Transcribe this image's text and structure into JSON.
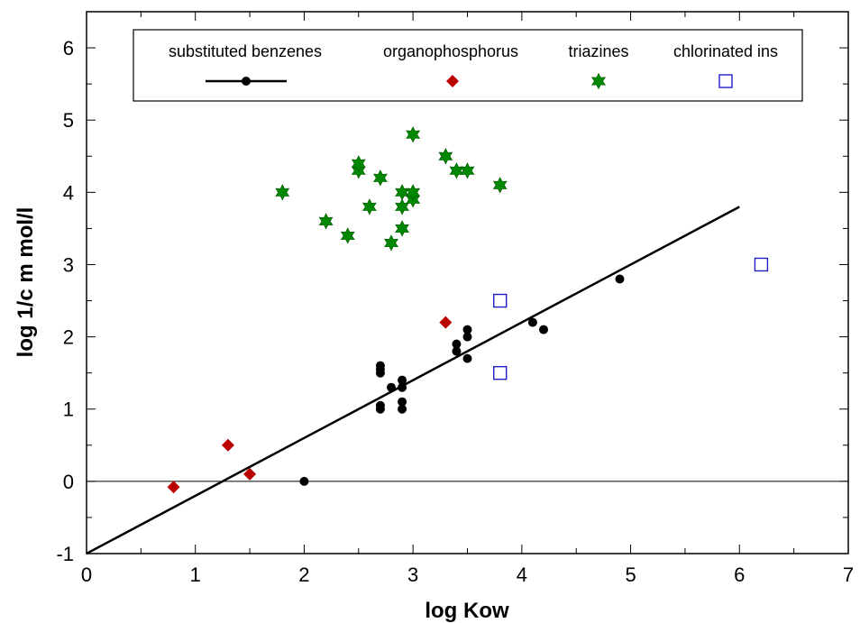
{
  "chart_data": {
    "type": "scatter",
    "title": "",
    "xlabel": "log Kow",
    "ylabel": "log 1/c m mol/l",
    "xlim": [
      0,
      7
    ],
    "ylim": [
      -1,
      6.5
    ],
    "x_ticks": [
      "0",
      "1",
      "2",
      "3",
      "4",
      "5",
      "6",
      "7"
    ],
    "y_ticks": [
      "-1",
      "0",
      "1",
      "2",
      "3",
      "4",
      "5",
      "6"
    ],
    "grid": false,
    "legend_position": "top",
    "zero_line": true,
    "series": [
      {
        "name": "substituted benzenes",
        "marker": "circle",
        "color": "#000000",
        "points": [
          [
            2.0,
            0.0
          ],
          [
            2.7,
            1.0
          ],
          [
            2.7,
            1.05
          ],
          [
            2.7,
            1.5
          ],
          [
            2.7,
            1.55
          ],
          [
            2.7,
            1.6
          ],
          [
            2.8,
            1.3
          ],
          [
            2.9,
            1.0
          ],
          [
            2.9,
            1.1
          ],
          [
            2.9,
            1.3
          ],
          [
            2.9,
            1.4
          ],
          [
            3.4,
            1.8
          ],
          [
            3.4,
            1.9
          ],
          [
            3.5,
            1.7
          ],
          [
            3.5,
            2.0
          ],
          [
            3.5,
            2.1
          ],
          [
            4.1,
            2.2
          ],
          [
            4.2,
            2.1
          ],
          [
            4.9,
            2.8
          ]
        ]
      },
      {
        "name": "organophosphorus",
        "marker": "diamond",
        "color": "#bb0000",
        "points": [
          [
            0.8,
            -0.08
          ],
          [
            1.3,
            0.5
          ],
          [
            1.5,
            0.1
          ],
          [
            3.3,
            2.2
          ]
        ]
      },
      {
        "name": "triazines",
        "marker": "star",
        "color": "#008800",
        "points": [
          [
            1.8,
            4.0
          ],
          [
            2.2,
            3.6
          ],
          [
            2.4,
            3.4
          ],
          [
            2.5,
            4.3
          ],
          [
            2.5,
            4.4
          ],
          [
            2.6,
            3.8
          ],
          [
            2.7,
            4.2
          ],
          [
            2.8,
            3.3
          ],
          [
            2.9,
            3.5
          ],
          [
            2.9,
            3.8
          ],
          [
            2.9,
            4.0
          ],
          [
            3.0,
            3.9
          ],
          [
            3.0,
            4.0
          ],
          [
            3.0,
            4.8
          ],
          [
            3.3,
            4.5
          ],
          [
            3.4,
            4.3
          ],
          [
            3.5,
            4.3
          ],
          [
            3.8,
            4.1
          ]
        ]
      },
      {
        "name": "chlorinated ins",
        "marker": "open-square",
        "color": "#1f1fcc",
        "points": [
          [
            3.8,
            1.5
          ],
          [
            3.8,
            2.5
          ],
          [
            6.2,
            3.0
          ]
        ]
      }
    ],
    "regression_line": {
      "x": [
        0,
        6.0
      ],
      "y": [
        -1.0,
        3.8
      ],
      "color": "#000000"
    }
  }
}
